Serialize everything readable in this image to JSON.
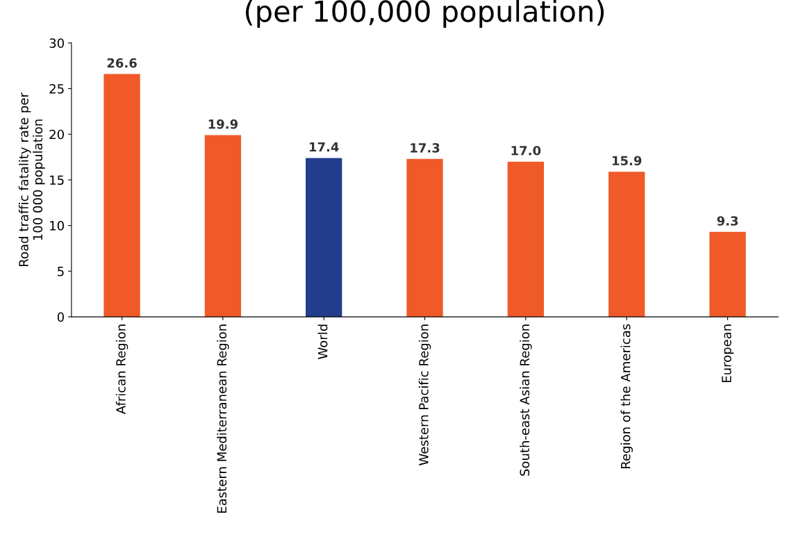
{
  "chart_data": {
    "type": "bar",
    "title": "(per 100,000 population)",
    "ylabel": "Road traffic fatality rate per\n100 000 population",
    "categories": [
      "African Region",
      "Eastern Mediterranean Region",
      "World",
      "Western Pacific Region",
      "South-east Asian Region",
      "Region of the Americas",
      "European"
    ],
    "values": [
      26.6,
      19.9,
      17.4,
      17.3,
      17.0,
      15.9,
      9.3
    ],
    "colors": [
      "#f05a28",
      "#f05a28",
      "#233d8c",
      "#f05a28",
      "#f05a28",
      "#f05a28",
      "#f05a28"
    ],
    "value_labels": [
      "26.6",
      "19.9",
      "17.4",
      "17.3",
      "17.0",
      "15.9",
      "9.3"
    ],
    "ylim": [
      0,
      30
    ],
    "yticks": [
      0,
      5,
      10,
      15,
      20,
      25,
      30
    ],
    "grid": false,
    "legend": false
  }
}
